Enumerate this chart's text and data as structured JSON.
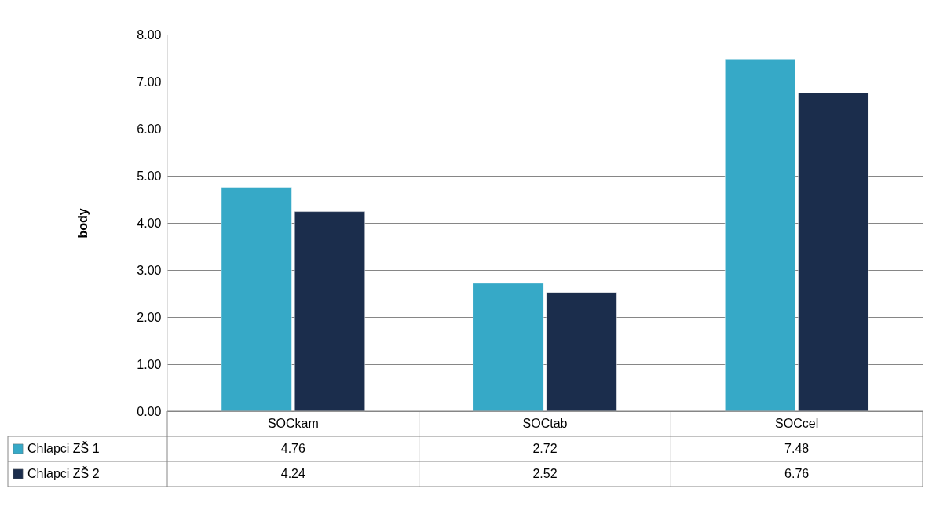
{
  "chart_data": {
    "type": "bar",
    "ylabel": "body",
    "categories": [
      "SOCkam",
      "SOCtab",
      "SOCcel"
    ],
    "series": [
      {
        "name": "Chlapci ZŠ 1",
        "color": "#36a9c7",
        "values": [
          4.76,
          2.72,
          7.48
        ]
      },
      {
        "name": "Chlapci ZŠ 2",
        "color": "#1b2d4c",
        "values": [
          4.24,
          2.52,
          6.76
        ]
      }
    ],
    "ylim": [
      0,
      8
    ],
    "yticks": [
      {
        "value": 0,
        "label": "0.00"
      },
      {
        "value": 1,
        "label": "1.00"
      },
      {
        "value": 2,
        "label": "2.00"
      },
      {
        "value": 3,
        "label": "3.00"
      },
      {
        "value": 4,
        "label": "4.00"
      },
      {
        "value": 5,
        "label": "5.00"
      },
      {
        "value": 6,
        "label": "6.00"
      },
      {
        "value": 7,
        "label": "7.00"
      },
      {
        "value": 8,
        "label": "8.00"
      }
    ],
    "grid": "y",
    "legend": "bottom",
    "data_labels": true
  }
}
